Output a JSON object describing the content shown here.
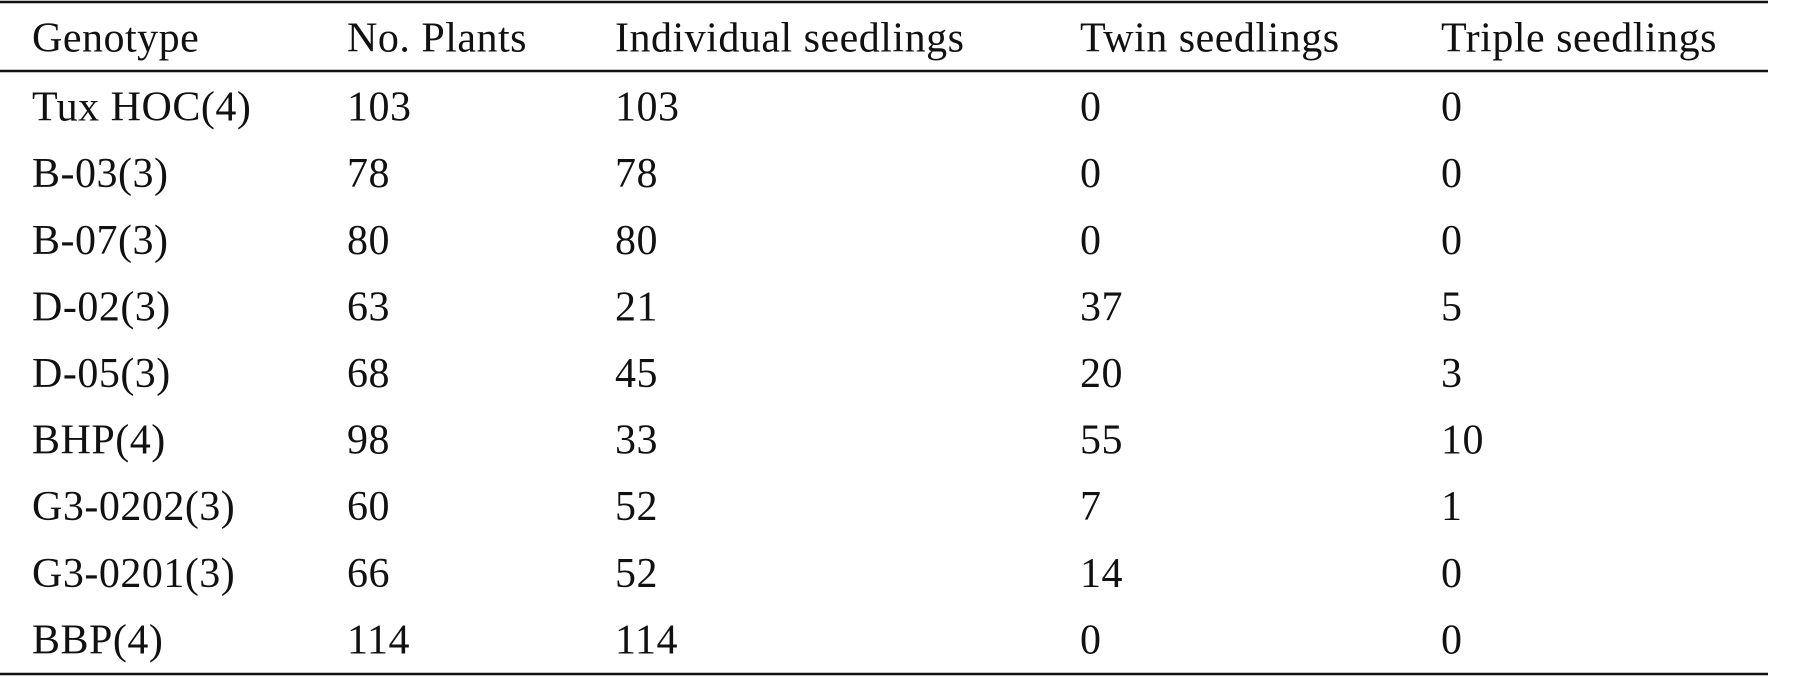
{
  "table": {
    "header": [
      "Genotype",
      "No. Plants",
      "Individual seedlings",
      "Twin seedlings",
      "Triple seedlings"
    ],
    "rows": [
      [
        "Tux HOC(4)",
        103,
        103,
        0,
        0
      ],
      [
        "B-03(3)",
        78,
        78,
        0,
        0
      ],
      [
        "B-07(3)",
        80,
        80,
        0,
        0
      ],
      [
        "D-02(3)",
        63,
        21,
        37,
        5
      ],
      [
        "D-05(3)",
        68,
        45,
        20,
        3
      ],
      [
        "BHP(4)",
        98,
        33,
        55,
        10
      ],
      [
        "G3-0202(3)",
        60,
        52,
        7,
        1
      ],
      [
        "G3-0201(3)",
        66,
        52,
        14,
        0
      ],
      [
        "BBP(4)",
        114,
        114,
        0,
        0
      ]
    ]
  }
}
